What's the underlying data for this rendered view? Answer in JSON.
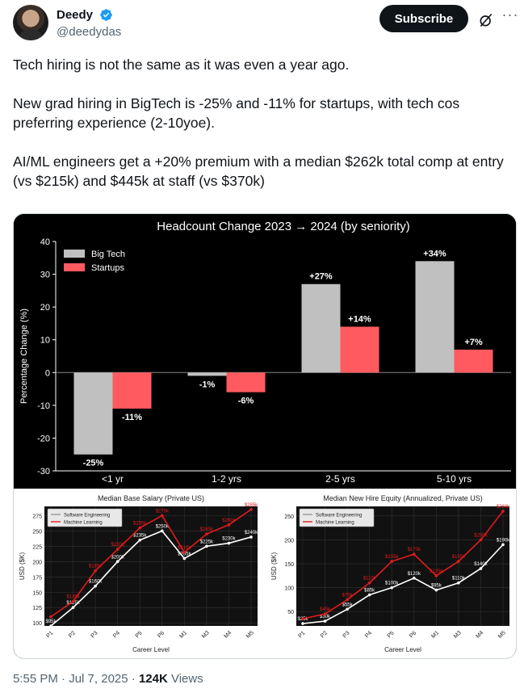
{
  "tweet": {
    "author_name": "Deedy",
    "author_handle": "@deedydas",
    "subscribe_label": "Subscribe",
    "more_label": "···",
    "paragraphs": [
      "Tech hiring is not the same as it was even a year ago.",
      "New grad hiring in BigTech is -25% and -11% for startups, with tech cos preferring experience (2-10yoe).",
      "AI/ML engineers get a +20% premium with a median $262k total comp at entry (vs $215k) and $445k at staff (vs $370k)"
    ],
    "time": "5:55 PM",
    "date": "Jul 7, 2025",
    "views_count": "124K",
    "views_label": "Views"
  },
  "colors": {
    "bigtech": "#c0c0c0",
    "startups": "#ff5a5f",
    "swe": "#ffffff",
    "ml": "#e41a1c",
    "verified": "#1d9bf0"
  },
  "chart_data": [
    {
      "type": "bar",
      "title": "Headcount Change 2023 → 2024 (by seniority)",
      "xlabel": "",
      "ylabel": "Percentage Change (%)",
      "categories": [
        "<1 yr",
        "1-2 yrs",
        "2-5 yrs",
        "5-10 yrs"
      ],
      "series": [
        {
          "name": "Big Tech",
          "values": [
            -25,
            -1,
            27,
            34
          ],
          "labels": [
            "-25%",
            "-1%",
            "+27%",
            "+34%"
          ]
        },
        {
          "name": "Startups",
          "values": [
            -11,
            -6,
            14,
            7
          ],
          "labels": [
            "-11%",
            "-6%",
            "+14%",
            "+7%"
          ]
        }
      ],
      "ylim": [
        -30,
        40
      ],
      "yticks": [
        -30,
        -20,
        -10,
        0,
        10,
        20,
        30,
        40
      ],
      "legend": "top-left",
      "grid": false
    },
    {
      "type": "line",
      "title": "Median Base Salary (Private US)",
      "xlabel": "Career Level",
      "ylabel": "USD ($K)",
      "categories": [
        "P1",
        "P2",
        "P3",
        "P4",
        "P5",
        "P6",
        "M1",
        "M3",
        "M4",
        "M5"
      ],
      "series": [
        {
          "name": "Software Engineering",
          "values": [
            95,
            125,
            160,
            200,
            235,
            250,
            205,
            225,
            230,
            240
          ],
          "labels": [
            "$95k",
            "$125k",
            "$160k",
            "$200k",
            "$235k",
            "$250k",
            "$205k",
            "$225k",
            "$230k",
            "$240k"
          ]
        },
        {
          "name": "Machine Learning",
          "values": [
            110,
            135,
            185,
            220,
            255,
            275,
            215,
            245,
            260,
            285
          ],
          "labels": [
            "",
            "$135k",
            "$185k",
            "$220k",
            "$255k",
            "$275k",
            "$215k",
            "$245k",
            "$260k",
            "$285k"
          ]
        }
      ],
      "ylim": [
        95,
        290
      ],
      "yticks": [
        100,
        125,
        150,
        175,
        200,
        225,
        250,
        275
      ],
      "legend": "top-left",
      "grid": true
    },
    {
      "type": "line",
      "title": "Median New Hire Equity (Annualized, Private US)",
      "xlabel": "Career Level",
      "ylabel": "USD ($K)",
      "categories": [
        "P1",
        "P2",
        "P3",
        "P4",
        "P5",
        "P6",
        "M1",
        "M3",
        "M4",
        "M5"
      ],
      "series": [
        {
          "name": "Software Engineering",
          "values": [
            25,
            30,
            55,
            85,
            100,
            120,
            95,
            110,
            140,
            190
          ],
          "labels": [
            "$25k",
            "$30k",
            "$55k",
            "$85k",
            "$100k",
            "$120k",
            "$95k",
            "$110k",
            "$140k",
            "$190k"
          ]
        },
        {
          "name": "Machine Learning",
          "values": [
            35,
            45,
            75,
            110,
            155,
            170,
            125,
            155,
            200,
            260
          ],
          "labels": [
            "",
            "$45k",
            "$75k",
            "$110k",
            "$155k",
            "$170k",
            "$125k",
            "$155k",
            "$200k",
            "$260k"
          ]
        }
      ],
      "ylim": [
        20,
        270
      ],
      "yticks": [
        50,
        100,
        150,
        200,
        250
      ],
      "legend": "top-left",
      "grid": true
    }
  ]
}
